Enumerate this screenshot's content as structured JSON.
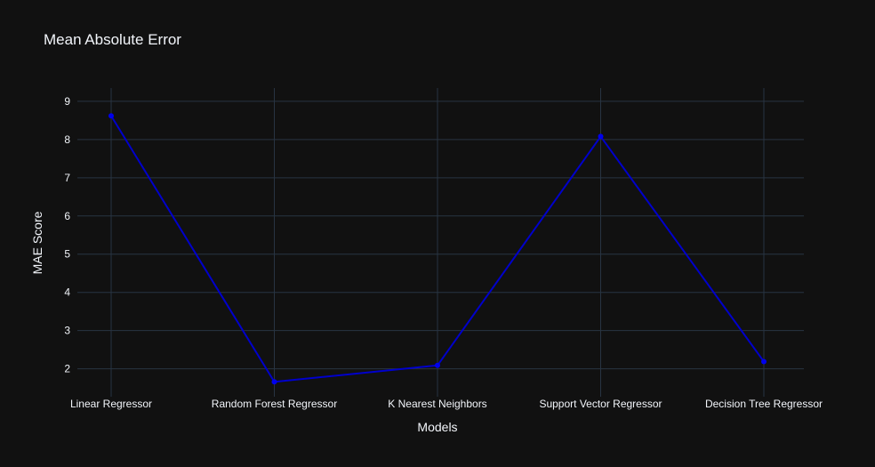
{
  "chart_data": {
    "type": "line",
    "title": "Mean Absolute Error",
    "xlabel": "Models",
    "ylabel": "MAE Score",
    "categories": [
      "Linear Regressor",
      "Random Forest Regressor",
      "K Nearest Neighbors",
      "Support Vector Regressor",
      "Decision Tree Regressor"
    ],
    "series": [
      {
        "values": [
          8.62,
          1.66,
          2.09,
          8.08,
          2.19
        ]
      }
    ],
    "yticks": [
      2,
      3,
      4,
      5,
      6,
      7,
      8,
      9
    ],
    "ylim": [
      1.27,
      9.3
    ],
    "grid": true,
    "legend": "none",
    "colors": {
      "background": "#111111",
      "grid": "#283442",
      "text": "#f2f5fa",
      "line": "#0000cc",
      "marker": "#0000ee"
    }
  }
}
